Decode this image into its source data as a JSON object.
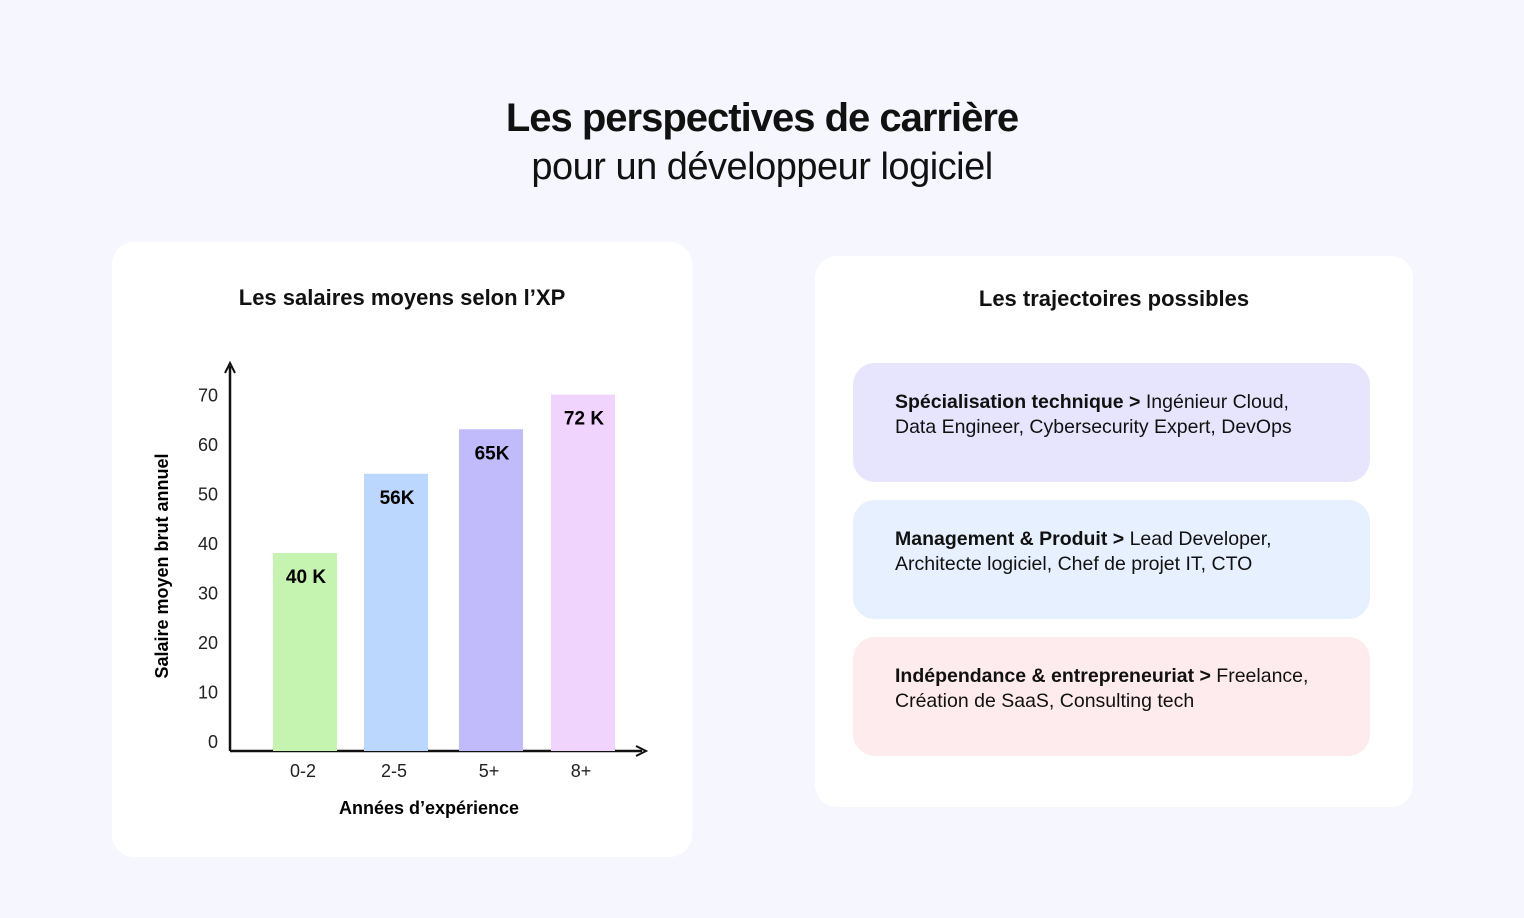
{
  "header": {
    "title": "Les perspectives de carrière",
    "subtitle": "pour un développeur logiciel"
  },
  "chart_data": {
    "type": "bar",
    "title": "Les salaires moyens selon l’XP",
    "xlabel": "Années d’expérience",
    "ylabel": "Salaire moyen brut annuel",
    "categories": [
      "0-2",
      "2-5",
      "5+",
      "8+"
    ],
    "values": [
      40,
      56,
      65,
      72
    ],
    "data_labels": [
      "40 K",
      "56K",
      "65K",
      "72 K"
    ],
    "colors": [
      "#c4f4b0",
      "#bbd7fd",
      "#c1bbfc",
      "#f1d4fd"
    ],
    "yticks": [
      0,
      10,
      20,
      30,
      40,
      50,
      60,
      70
    ],
    "ylim": [
      0,
      76
    ],
    "grid": false
  },
  "trajectories": {
    "title": "Les trajectoires possibles",
    "items": [
      {
        "head": "Spécialisation technique >",
        "line1": " Ingénieur Cloud,",
        "line2": "Data Engineer, Cybersecurity Expert, DevOps",
        "color": "#e7e5fd"
      },
      {
        "head": "Management & Produit >",
        "line1": " Lead Developer,",
        "line2": "Architecte logiciel, Chef de projet IT, CTO",
        "color": "#e6f0fe"
      },
      {
        "head": "Indépendance & entrepreneuriat >",
        "line1": " Freelance,",
        "line2": "Création de SaaS, Consulting tech",
        "color": "#feebed"
      }
    ]
  }
}
